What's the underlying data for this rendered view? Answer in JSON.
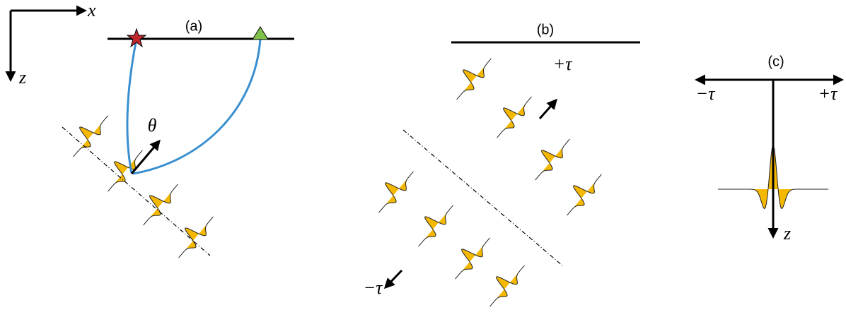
{
  "panels": [
    {
      "label": "(a)",
      "x_axis": "x",
      "z_axis": "z",
      "angle": "θ"
    },
    {
      "label": "(b)",
      "plus": "+τ",
      "minus": "−τ"
    },
    {
      "label": "(c)",
      "minus": "−τ",
      "plus": "+τ",
      "depth": "z"
    }
  ]
}
